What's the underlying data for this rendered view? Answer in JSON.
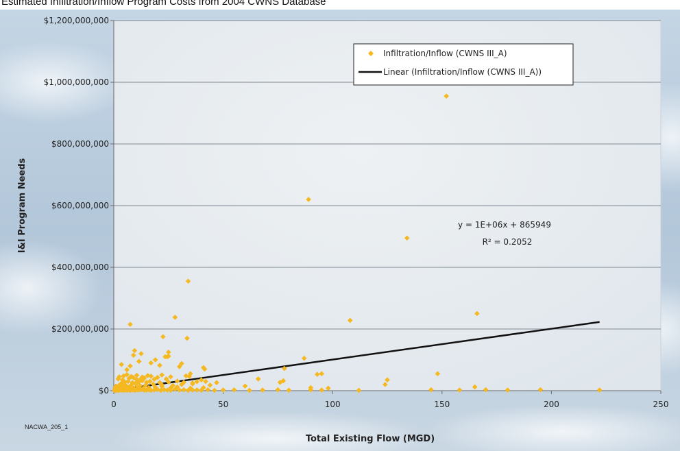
{
  "page": {
    "title": "Estimated Infiltration/Inflow Program Costs from 2004 CWNS Database",
    "figure_code": "NACWA_205_1"
  },
  "chart_data": {
    "type": "scatter",
    "xlabel": "Total Existing Flow (MGD)",
    "ylabel": "I&I Program Needs",
    "xlim": [
      0,
      250
    ],
    "ylim": [
      0,
      1200000000
    ],
    "x_ticks": [
      0,
      50,
      100,
      150,
      200,
      250
    ],
    "x_tick_labels": [
      "0",
      "50",
      "100",
      "150",
      "200",
      "250"
    ],
    "y_ticks": [
      0,
      200000000,
      400000000,
      600000000,
      800000000,
      1000000000,
      1200000000
    ],
    "y_tick_labels": [
      "$0",
      "$200,000,000",
      "$400,000,000",
      "$600,000,000",
      "$800,000,000",
      "$1,000,000,000",
      "$1,200,000,000"
    ],
    "grid": "horizontal",
    "legend_position": "top-right",
    "colors": {
      "points": "#f5b820",
      "trendline": "#111111",
      "plot_bg": "#e6ebef",
      "background": "#b9cee0"
    },
    "series": [
      {
        "name": "Infiltration/Inflow (CWNS III_A)",
        "x": [
          0.3,
          0.6,
          0.8,
          1.0,
          1.2,
          1.5,
          1.8,
          2.0,
          2.3,
          2.6,
          3.0,
          3.4,
          3.8,
          4.2,
          4.6,
          5.0,
          5.5,
          6.0,
          6.5,
          7.0,
          7.5,
          8.0,
          8.6,
          9.2,
          9.8,
          10.5,
          11.2,
          12.0,
          13.0,
          14.0,
          15.0,
          16.0,
          17.0,
          18.5,
          20.0,
          21.5,
          23.0,
          24.5,
          26.0,
          28.0,
          30.0,
          32.0,
          34.0,
          36.0,
          38.0,
          40.0,
          43.0,
          46.0,
          50.0,
          55.0,
          62.0,
          68.0,
          75.0,
          80.0,
          90.0,
          95.0,
          112.0,
          145.0,
          158.0,
          170.0,
          180.0,
          195.0,
          222.0,
          0.5,
          1.3,
          2.2,
          3.1,
          4.5,
          5.8,
          7.2,
          9.0,
          11.0,
          13.5,
          16.0,
          19.0,
          22.0,
          26.0,
          29.0,
          35.0,
          41.0,
          1.0,
          2.5,
          4.0,
          5.5,
          8.0,
          10.0,
          12.0,
          14.5,
          18.0,
          22.0,
          27.0,
          31.0,
          36.0,
          44.0,
          3.5,
          5.0,
          6.5,
          8.5,
          10.0,
          11.5,
          13.0,
          15.0,
          16.5,
          21.0,
          25.0,
          29.0,
          32.0,
          36.0,
          38.0,
          42.0,
          47.0,
          76.0,
          77.5,
          2.0,
          4.0,
          7.0,
          9.0,
          10.5,
          12.5,
          14.0,
          18.5,
          20.0,
          24.0,
          2.5,
          4.5,
          6.0,
          8.0,
          10.5,
          13.0,
          15.5,
          17.0,
          22.0,
          26.0,
          33.0,
          34.5,
          40.0,
          66.0,
          78.0,
          87.0,
          90.0,
          93.0,
          95.0,
          98.0,
          124.0,
          125.0,
          148.0,
          165.0,
          24.5,
          25.0,
          35.0,
          41.0,
          41.5,
          60.0,
          3.5,
          6.0,
          7.5,
          11.5,
          17.0,
          19.0,
          21.0,
          23.5,
          30.0,
          31.0,
          9.0,
          9.5,
          12.5,
          22.5,
          28.0,
          33.5,
          7.5,
          25.0,
          34.0,
          152.0,
          89.0,
          134.0,
          108.0,
          166.0
        ],
        "y": [
          1000000,
          3000000,
          500000,
          2000000,
          4000000,
          1500000,
          5000000,
          2500000,
          1000000,
          6000000,
          3000000,
          2000000,
          4000000,
          1000000,
          7000000,
          2000000,
          3000000,
          1500000,
          2500000,
          4000000,
          1000000,
          6000000,
          2000000,
          3000000,
          1000000,
          5000000,
          2000000,
          3000000,
          4000000,
          1500000,
          2000000,
          3000000,
          1000000,
          2500000,
          4000000,
          1000000,
          3000000,
          2000000,
          1500000,
          5000000,
          2000000,
          3000000,
          1000000,
          2000000,
          2500000,
          1500000,
          3000000,
          1000000,
          2000000,
          2500000,
          1000000,
          2000000,
          3000000,
          1500000,
          2500000,
          2000000,
          1000000,
          3000000,
          2000000,
          3000000,
          2000000,
          3000000,
          2000000,
          8000000,
          10000000,
          12000000,
          9000000,
          11000000,
          7000000,
          13000000,
          9000000,
          12000000,
          8000000,
          10000000,
          11000000,
          14000000,
          9000000,
          12000000,
          8000000,
          10000000,
          15000000,
          18000000,
          20000000,
          17000000,
          19000000,
          22000000,
          16000000,
          18000000,
          21000000,
          19000000,
          17000000,
          20000000,
          22000000,
          18000000,
          24000000,
          28000000,
          30000000,
          26000000,
          25000000,
          29000000,
          32000000,
          27000000,
          30000000,
          26000000,
          28000000,
          31000000,
          27000000,
          25000000,
          29000000,
          30000000,
          26000000,
          27000000,
          32000000,
          38000000,
          35000000,
          40000000,
          42000000,
          36000000,
          39000000,
          41000000,
          37000000,
          43000000,
          38000000,
          45000000,
          48000000,
          52000000,
          46000000,
          50000000,
          44000000,
          49000000,
          47000000,
          51000000,
          45000000,
          48000000,
          46000000,
          35000000,
          38000000,
          72000000,
          105000000,
          10000000,
          53000000,
          55000000,
          8000000,
          20000000,
          35000000,
          55000000,
          12000000,
          110000000,
          125000000,
          55000000,
          75000000,
          70000000,
          15000000,
          85000000,
          68000000,
          80000000,
          95000000,
          90000000,
          100000000,
          82000000,
          110000000,
          78000000,
          88000000,
          115000000,
          130000000,
          120000000,
          175000000,
          238000000,
          170000000,
          215000000,
          112000000,
          355000000,
          955000000,
          620000000,
          495000000,
          228000000,
          250000000
        ]
      },
      {
        "name": "Linear (Infiltration/Inflow (CWNS III_A))",
        "type": "line",
        "x": [
          0,
          222
        ],
        "y": [
          865949,
          222865949
        ]
      }
    ],
    "annotations": {
      "equation": "y = 1E+06x + 865949",
      "r_squared": "R² = 0.2052"
    }
  }
}
